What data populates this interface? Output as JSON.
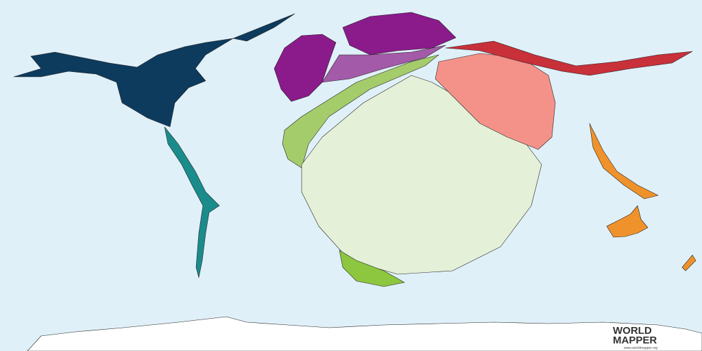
{
  "logo": {
    "line1": "WORLD",
    "line2": "MAPPER",
    "url": "www.worldmapper.org"
  }
}
